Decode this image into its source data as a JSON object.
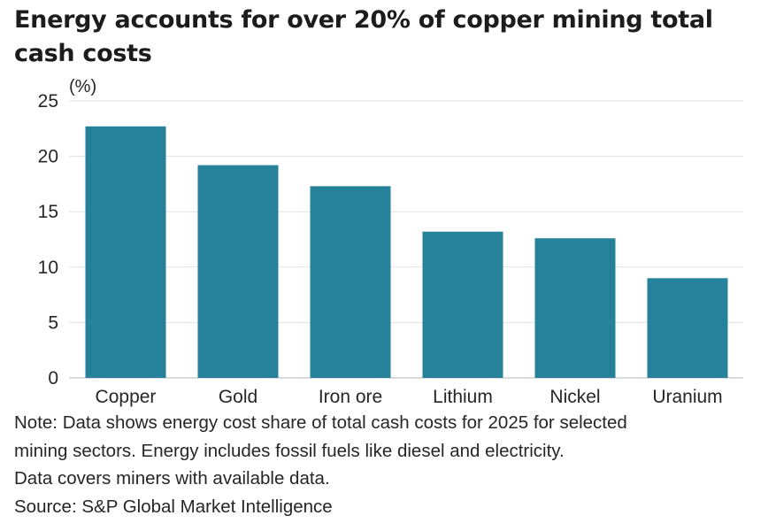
{
  "title": "Energy accounts for over 20% of copper mining total cash costs",
  "chart_data": {
    "type": "bar",
    "title": "Energy accounts for over 20% of copper mining total cash costs",
    "ylabel": "(%)",
    "xlabel": "",
    "categories": [
      "Copper",
      "Gold",
      "Iron ore",
      "Lithium",
      "Nickel",
      "Uranium"
    ],
    "values": [
      22.7,
      19.2,
      17.3,
      13.2,
      12.6,
      9.0
    ],
    "ylim": [
      0,
      25
    ],
    "yticks": [
      0,
      5,
      10,
      15,
      20,
      25
    ],
    "grid": true,
    "bar_color": "#25829a"
  },
  "notes": {
    "line1": "Note: Data shows energy cost share of total cash costs for 2025 for selected",
    "line2": "mining sectors. Energy includes fossil fuels like diesel and electricity.",
    "line3": "Data covers miners with available data.",
    "source": "Source: S&P Global Market Intelligence"
  }
}
